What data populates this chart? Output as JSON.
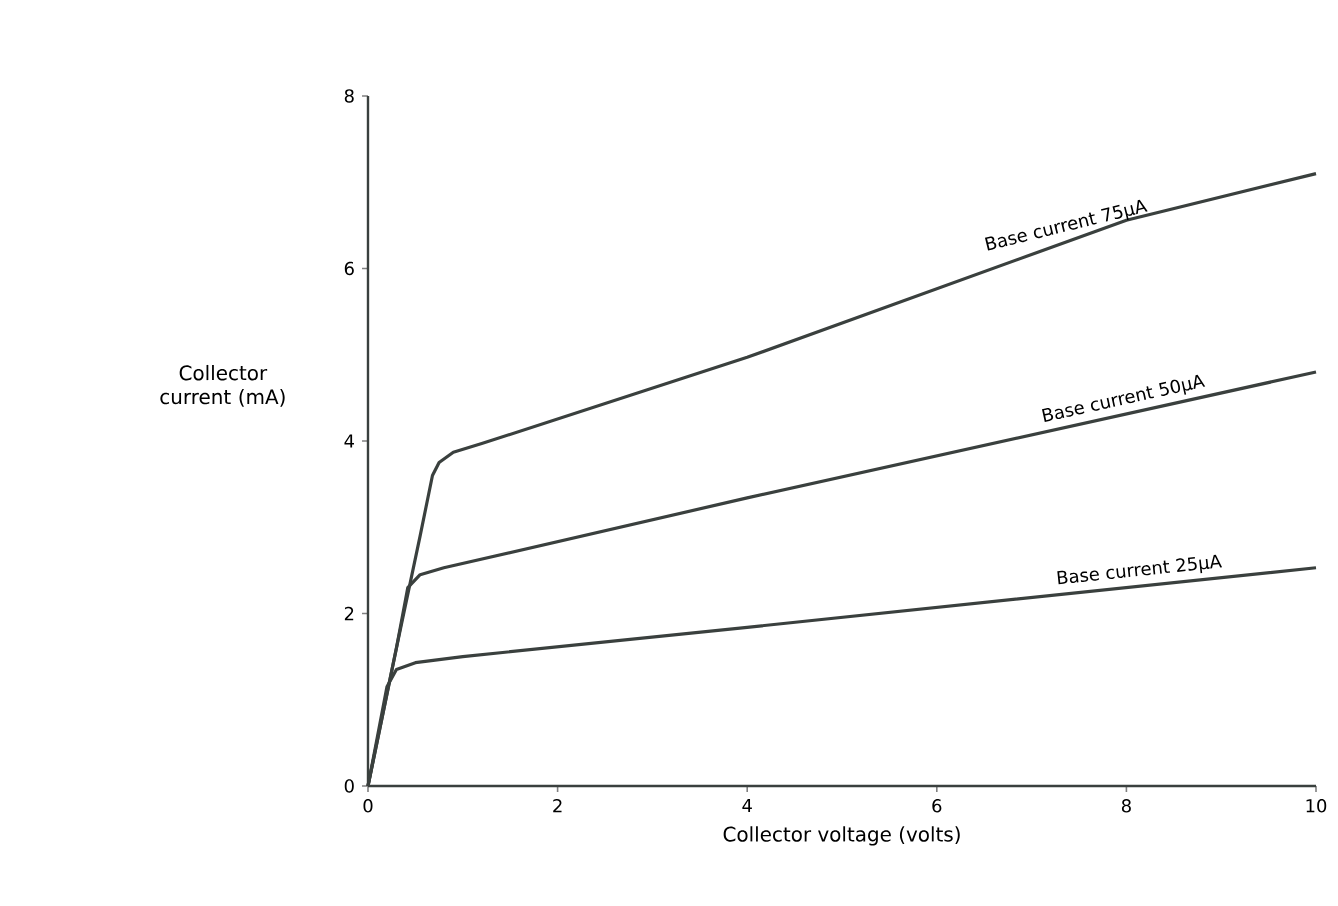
{
  "chart_data": {
    "type": "line",
    "xlabel": "Collector voltage (volts)",
    "ylabel": "Collector current (mA)",
    "xlim": [
      0,
      10
    ],
    "ylim": [
      0,
      8
    ],
    "xticks": [
      0,
      2,
      4,
      6,
      8,
      10
    ],
    "yticks": [
      0,
      2,
      4,
      6,
      8
    ],
    "grid": false,
    "marker": "none",
    "line_style": "solid",
    "series": [
      {
        "color": "#3a403e",
        "x": [
          0,
          0.3,
          0.55,
          0.68,
          0.75,
          0.9,
          1.2,
          4,
          8,
          10
        ],
        "values": [
          0,
          1.6,
          2.9,
          3.6,
          3.75,
          3.87,
          3.97,
          4.97,
          6.56,
          7.1
        ]
      },
      {
        "color": "#3a403e",
        "x": [
          0,
          0.3,
          0.42,
          0.55,
          0.8,
          4,
          10
        ],
        "values": [
          0,
          1.6,
          2.3,
          2.45,
          2.53,
          3.34,
          4.8
        ]
      },
      {
        "color": "#3a403e",
        "x": [
          0,
          0.2,
          0.3,
          0.5,
          1,
          4,
          10
        ],
        "values": [
          0,
          1.15,
          1.35,
          1.43,
          1.5,
          1.84,
          2.53
        ]
      }
    ],
    "annotations": [
      {
        "text": "Base current 75µA",
        "x": 7.4,
        "y": 6.32
      },
      {
        "text": "Base current 50µA",
        "x": 8.0,
        "y": 4.31
      },
      {
        "text": "Base current 25µA",
        "x": 8.15,
        "y": 2.32
      }
    ]
  }
}
